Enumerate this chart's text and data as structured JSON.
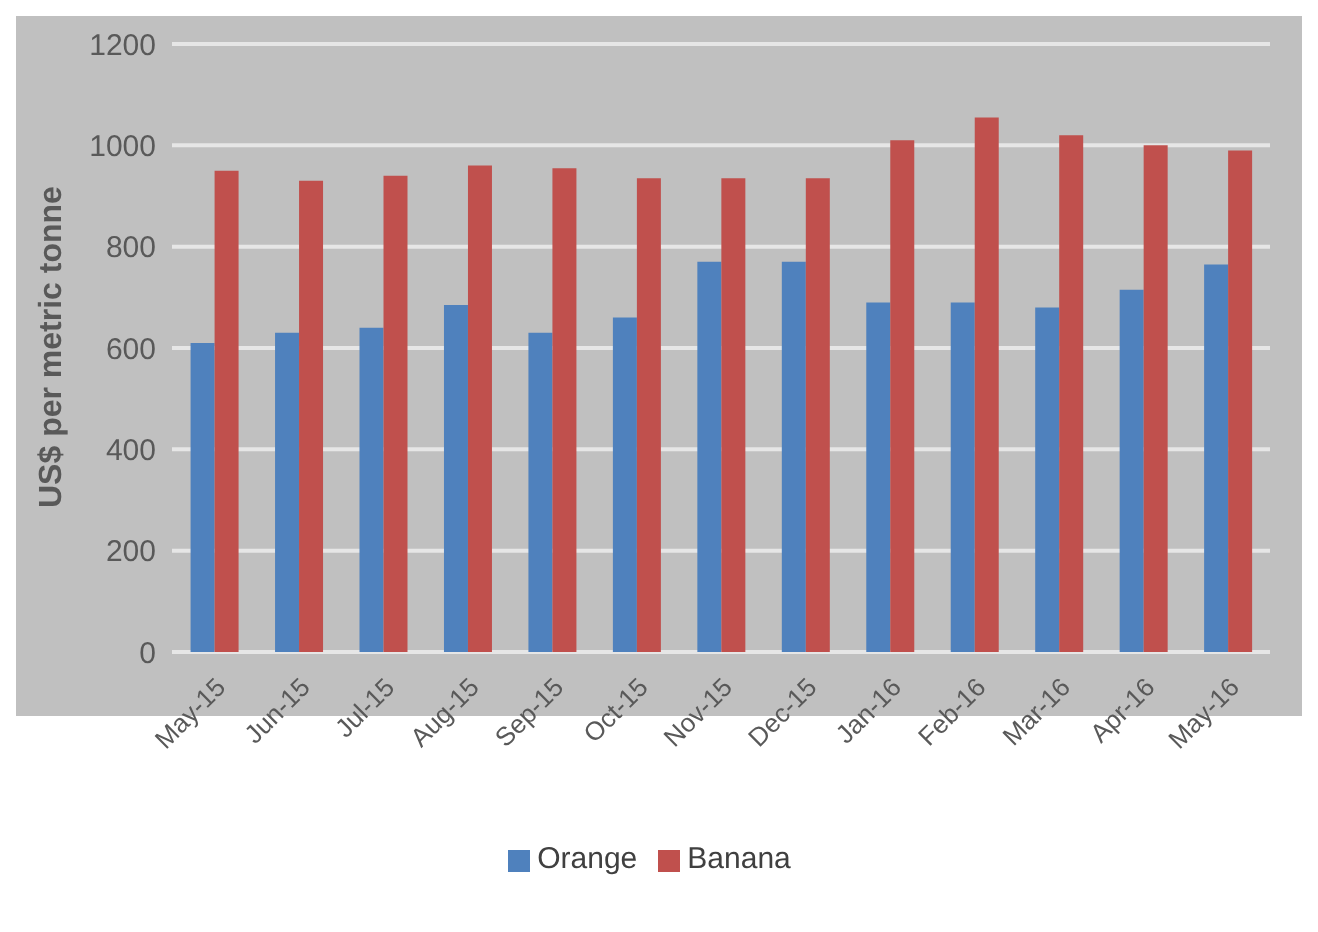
{
  "chart_data": {
    "type": "bar",
    "ylabel": "US$ per metric tonne",
    "categories": [
      "May-15",
      "Jun-15",
      "Jul-15",
      "Aug-15",
      "Sep-15",
      "Oct-15",
      "Nov-15",
      "Dec-15",
      "Jan-16",
      "Feb-16",
      "Mar-16",
      "Apr-16",
      "May-16"
    ],
    "series": [
      {
        "name": "Orange",
        "color": "#4f81bd",
        "values": [
          610,
          630,
          640,
          685,
          630,
          660,
          770,
          770,
          690,
          690,
          680,
          715,
          765
        ]
      },
      {
        "name": "Banana",
        "color": "#c0504d",
        "values": [
          950,
          930,
          940,
          960,
          955,
          935,
          935,
          935,
          1010,
          1055,
          1020,
          1000,
          990
        ]
      }
    ],
    "ylim": [
      0,
      1200
    ],
    "yticks": [
      0,
      200,
      400,
      600,
      800,
      1000,
      1200
    ],
    "grid": "y",
    "legend": "bottom"
  }
}
